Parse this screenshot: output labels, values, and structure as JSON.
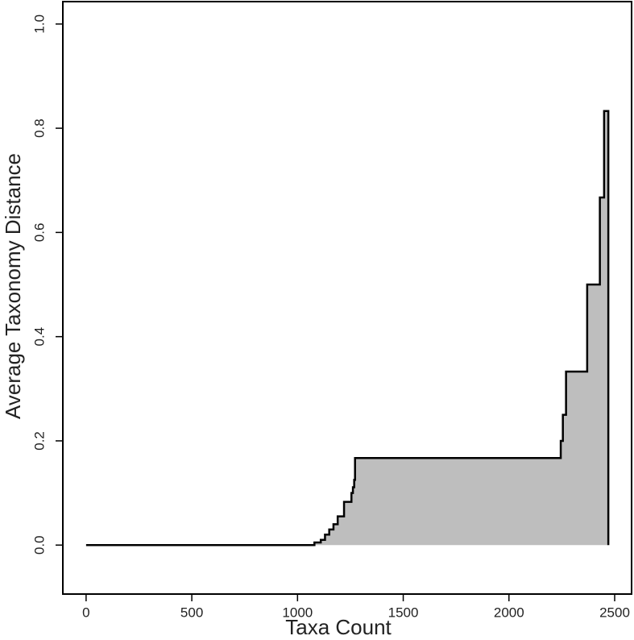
{
  "chart_data": {
    "type": "step-area",
    "x_label": "Taxa Count",
    "y_label": "Average Taxonomy Distance",
    "x": [
      0,
      1080,
      1110,
      1130,
      1150,
      1170,
      1190,
      1220,
      1255,
      1262,
      1268,
      1272,
      2245,
      2255,
      2270,
      2370,
      2430,
      2450,
      2470
    ],
    "values": [
      0,
      0.005,
      0.01,
      0.02,
      0.03,
      0.04,
      0.055,
      0.083,
      0.1,
      0.111,
      0.125,
      0.167,
      0.2,
      0.25,
      0.333,
      0.5,
      0.667,
      0.833,
      0
    ],
    "color": "#bebebe",
    "xlim": [
      -110,
      2580
    ],
    "ylim": [
      -0.094,
      1.043
    ],
    "xticks": [
      0,
      500,
      1000,
      1500,
      2000,
      2500
    ],
    "yticks": [
      {
        "value": 0,
        "label": "0.0"
      },
      0.2,
      0.4,
      0.6,
      0.8,
      {
        "value": 1,
        "label": "1.0"
      }
    ]
  }
}
